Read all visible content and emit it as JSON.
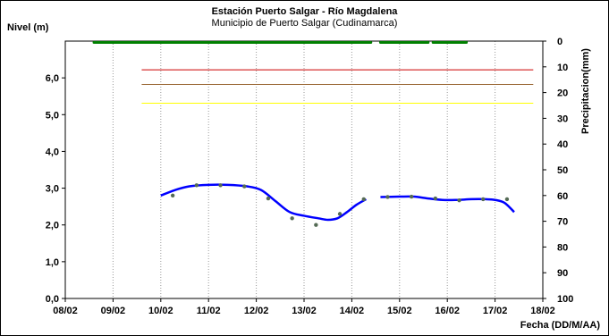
{
  "chart_data": {
    "type": "line",
    "title": "Estación Puerto Salgar - Río Magdalena",
    "subtitle": "Municipio de Puerto Salgar (Cudinamarca)",
    "ylabel": "Nivel (m)",
    "y2label": "Precipitacion(mm)",
    "xlabel": "Fecha (DD/M/AA)",
    "ylim": [
      0,
      7.0
    ],
    "y2lim": [
      0,
      100
    ],
    "y2_inverted": true,
    "xlim": [
      8,
      18
    ],
    "grid": "vertical-dotted",
    "x_tick_labels": [
      "08/02",
      "09/02",
      "10/02",
      "11/02",
      "12/02",
      "13/02",
      "14/02",
      "15/02",
      "16/02",
      "17/02",
      "18/02"
    ],
    "y_tick_labels": [
      "0,0",
      "1,0",
      "2,0",
      "3,0",
      "4,0",
      "5,0",
      "6,0"
    ],
    "y2_tick_labels": [
      "0",
      "10",
      "20",
      "30",
      "40",
      "50",
      "60",
      "70",
      "80",
      "90",
      "100"
    ],
    "reference_lines": [
      {
        "color": "#cc0000",
        "y": 6.22,
        "x_start": 9.6
      },
      {
        "color": "#996633",
        "y": 5.82,
        "x_start": 9.6
      },
      {
        "color": "#ffff00",
        "y": 5.31,
        "x_start": 9.6
      }
    ],
    "precipitation_segments": [
      {
        "x_start": 8.6,
        "x_end": 14.4
      },
      {
        "x_start": 14.6,
        "x_end": 15.6
      },
      {
        "x_start": 15.7,
        "x_end": 16.4
      }
    ],
    "series": [
      {
        "color": "#0000ff",
        "segments": [
          [
            [
              10.0,
              2.8
            ],
            [
              10.3,
              2.95
            ],
            [
              10.6,
              3.05
            ],
            [
              11.0,
              3.09
            ],
            [
              11.4,
              3.09
            ],
            [
              11.8,
              3.05
            ],
            [
              12.1,
              2.95
            ],
            [
              12.4,
              2.65
            ],
            [
              12.7,
              2.35
            ],
            [
              13.0,
              2.25
            ],
            [
              13.3,
              2.18
            ],
            [
              13.5,
              2.14
            ],
            [
              13.7,
              2.18
            ],
            [
              13.9,
              2.35
            ],
            [
              14.1,
              2.55
            ],
            [
              14.3,
              2.7
            ]
          ],
          [
            [
              14.6,
              2.76
            ],
            [
              15.0,
              2.77
            ],
            [
              15.3,
              2.77
            ],
            [
              15.6,
              2.72
            ],
            [
              15.9,
              2.68
            ],
            [
              16.2,
              2.68
            ],
            [
              16.5,
              2.7
            ],
            [
              16.8,
              2.7
            ],
            [
              17.0,
              2.68
            ],
            [
              17.2,
              2.6
            ],
            [
              17.4,
              2.35
            ]
          ]
        ]
      }
    ],
    "observed_points": [
      {
        "x": 10.25,
        "y": 2.8
      },
      {
        "x": 10.75,
        "y": 3.08
      },
      {
        "x": 11.25,
        "y": 3.08
      },
      {
        "x": 11.75,
        "y": 3.05
      },
      {
        "x": 12.25,
        "y": 2.72
      },
      {
        "x": 12.75,
        "y": 2.18
      },
      {
        "x": 13.25,
        "y": 2.0
      },
      {
        "x": 13.75,
        "y": 2.3
      },
      {
        "x": 14.25,
        "y": 2.7
      },
      {
        "x": 14.75,
        "y": 2.76
      },
      {
        "x": 15.25,
        "y": 2.77
      },
      {
        "x": 15.75,
        "y": 2.72
      },
      {
        "x": 16.25,
        "y": 2.67
      },
      {
        "x": 16.75,
        "y": 2.7
      },
      {
        "x": 17.25,
        "y": 2.7
      }
    ]
  }
}
